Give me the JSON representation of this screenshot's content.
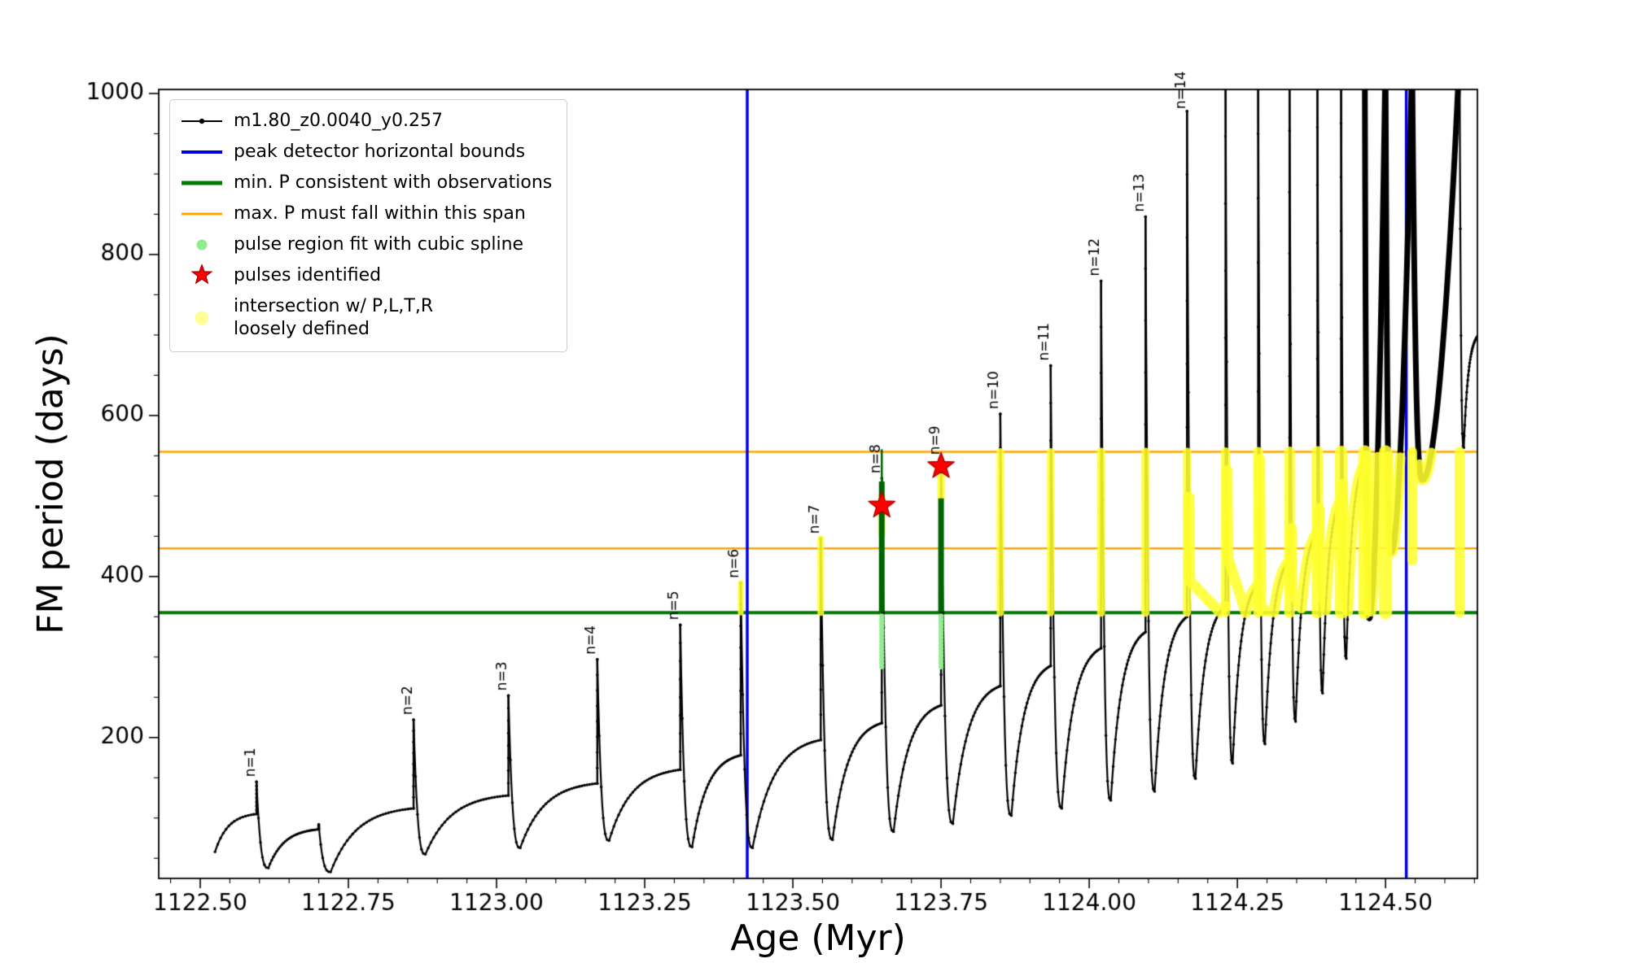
{
  "colors": {
    "series": "#000000",
    "bounds": "#0000dd",
    "min_p": "#007a00",
    "max_p": "#ffa500",
    "spline": "#90ee90",
    "pulse_star": "#ff0000",
    "star_edge": "#b30000",
    "intersection": "#ffff2e",
    "identified_green": "#006400",
    "spine": "#000000"
  },
  "chart_data": {
    "type": "line",
    "series_label": "m1.80_z0.0040_y0.257",
    "title": "",
    "xlabel": "Age (Myr)",
    "ylabel": "FM period (days)",
    "xlim": [
      1122.43,
      1124.655
    ],
    "ylim": [
      25,
      1005
    ],
    "xticks": [
      1122.5,
      1122.75,
      1123.0,
      1123.25,
      1123.5,
      1123.75,
      1124.0,
      1124.25,
      1124.5
    ],
    "xtick_labels": [
      "1122.50",
      "1122.75",
      "1123.00",
      "1123.25",
      "1123.50",
      "1123.75",
      "1124.00",
      "1124.25",
      "1124.50"
    ],
    "yticks": [
      200,
      400,
      600,
      800,
      1000
    ],
    "ytick_labels": [
      "200",
      "400",
      "600",
      "800",
      "1000"
    ],
    "x_minor_step": 0.05,
    "y_minor_step": 50,
    "grid": false,
    "legend_position": "upper left",
    "peak_bounds_x": [
      1123.423,
      1124.535
    ],
    "min_P": 355,
    "max_P_span": [
      435,
      555
    ],
    "data_start": {
      "x": 1122.525,
      "y": 58
    },
    "tail_end_y": 700,
    "pulses": [
      {
        "label": "n=1",
        "x": 1122.595,
        "peak": 145,
        "base": 105,
        "min_after": 38
      },
      {
        "label": "",
        "x": 1122.7,
        "peak": 92,
        "base": 86,
        "min_after": 33
      },
      {
        "label": "n=2",
        "x": 1122.86,
        "peak": 222,
        "base": 112,
        "min_after": 55
      },
      {
        "label": "n=3",
        "x": 1123.02,
        "peak": 252,
        "base": 128,
        "min_after": 63
      },
      {
        "label": "n=4",
        "x": 1123.17,
        "peak": 297,
        "base": 143,
        "min_after": 72
      },
      {
        "label": "n=5",
        "x": 1123.31,
        "peak": 340,
        "base": 160,
        "min_after": 64
      },
      {
        "label": "n=6",
        "x": 1123.412,
        "peak": 392,
        "base": 178,
        "min_after": 63
      },
      {
        "label": "n=7",
        "x": 1123.547,
        "peak": 447,
        "base": 197,
        "min_after": 73
      },
      {
        "label": "n=8",
        "x": 1123.65,
        "peak": 522,
        "base": 218,
        "min_after": 83
      },
      {
        "label": "n=9",
        "x": 1123.75,
        "peak": 545,
        "base": 240,
        "min_after": 93
      },
      {
        "label": "n=10",
        "x": 1123.85,
        "peak": 602,
        "base": 264,
        "min_after": 103
      },
      {
        "label": "n=11",
        "x": 1123.935,
        "peak": 662,
        "base": 289,
        "min_after": 112
      },
      {
        "label": "n=12",
        "x": 1124.02,
        "peak": 767,
        "base": 311,
        "min_after": 122
      },
      {
        "label": "n=13",
        "x": 1124.095,
        "peak": 847,
        "base": 331,
        "min_after": 133
      },
      {
        "label": "n=14",
        "x": 1124.165,
        "peak": 978,
        "base": 350,
        "min_after": 149
      },
      {
        "label": "",
        "x": 1124.23,
        "peak": 1200,
        "base": 363,
        "min_after": 168
      },
      {
        "label": "",
        "x": 1124.285,
        "peak": 1200,
        "base": 390,
        "min_after": 192
      },
      {
        "label": "",
        "x": 1124.338,
        "peak": 1200,
        "base": 420,
        "min_after": 220
      },
      {
        "label": "",
        "x": 1124.385,
        "peak": 1200,
        "base": 455,
        "min_after": 255
      },
      {
        "label": "",
        "x": 1124.425,
        "peak": 1200,
        "base": 495,
        "min_after": 298
      },
      {
        "label": "",
        "x": 1124.465,
        "peak": 1200,
        "base": 540,
        "min_after": 348
      },
      {
        "label": "",
        "x": 1124.5,
        "peak": 1200,
        "base": 1050,
        "min_after": 430
      },
      {
        "label": "",
        "x": 1124.545,
        "peak": 1200,
        "base": 1050,
        "min_after": 520
      },
      {
        "label": "",
        "x": 1124.625,
        "peak": 1200,
        "base": 1050,
        "min_after": 560
      }
    ],
    "stars": [
      {
        "x": 1123.65,
        "y": 488
      },
      {
        "x": 1123.75,
        "y": 537
      }
    ],
    "green_segments": [
      {
        "x": 1123.65,
        "y0": 356,
        "y1": 518,
        "thin_top": 558
      },
      {
        "x": 1123.75,
        "y0": 356,
        "y1": 497,
        "thin_top": null
      }
    ],
    "spline_regions": [
      {
        "x": 1123.65,
        "y0": 288,
        "y1": 354
      },
      {
        "x": 1123.75,
        "y0": 288,
        "y1": 354
      }
    ],
    "yellow_stripes": [
      {
        "x": 1123.412,
        "y0": 355,
        "y1": 392,
        "w": 7
      },
      {
        "x": 1123.547,
        "y0": 355,
        "y1": 447,
        "w": 8
      },
      {
        "x": 1123.65,
        "y0": 452,
        "y1": 500,
        "w": 9
      },
      {
        "x": 1123.75,
        "y0": 497,
        "y1": 542,
        "w": 9
      },
      {
        "x": 1123.85,
        "y0": 355,
        "y1": 555,
        "w": 9
      },
      {
        "x": 1123.935,
        "y0": 355,
        "y1": 555,
        "w": 9
      },
      {
        "x": 1124.02,
        "y0": 355,
        "y1": 555,
        "w": 10
      },
      {
        "x": 1124.095,
        "y0": 355,
        "y1": 555,
        "w": 10
      },
      {
        "x": 1124.165,
        "y0": 355,
        "y1": 555,
        "w": 10
      },
      {
        "x": 1124.23,
        "y0": 355,
        "y1": 555,
        "w": 11
      },
      {
        "x": 1124.285,
        "y0": 355,
        "y1": 555,
        "w": 12
      },
      {
        "x": 1124.338,
        "y0": 355,
        "y1": 555,
        "w": 13
      },
      {
        "x": 1124.385,
        "y0": 355,
        "y1": 555,
        "w": 14
      },
      {
        "x": 1124.425,
        "y0": 355,
        "y1": 555,
        "w": 15
      },
      {
        "x": 1124.465,
        "y0": 355,
        "y1": 555,
        "w": 16
      },
      {
        "x": 1124.5,
        "y0": 355,
        "y1": 555,
        "w": 16
      },
      {
        "x": 1124.545,
        "y0": 420,
        "y1": 555,
        "w": 12
      },
      {
        "x": 1124.625,
        "y0": 355,
        "y1": 555,
        "w": 12
      }
    ]
  },
  "legend": {
    "entries": [
      {
        "label": "m1.80_z0.0040_y0.257",
        "marker": "line-dot"
      },
      {
        "label": "peak detector horizontal bounds",
        "marker": "blue-line"
      },
      {
        "label": "min. P consistent with observations",
        "marker": "green-line"
      },
      {
        "label": "max. P must fall within this span",
        "marker": "orange-line"
      },
      {
        "label": "pulse region fit with cubic spline",
        "marker": "green-dot"
      },
      {
        "label": "pulses identified",
        "marker": "red-star"
      },
      {
        "label": "intersection w/ P,L,T,R\nloosely defined",
        "marker": "yellow-dot"
      }
    ]
  }
}
